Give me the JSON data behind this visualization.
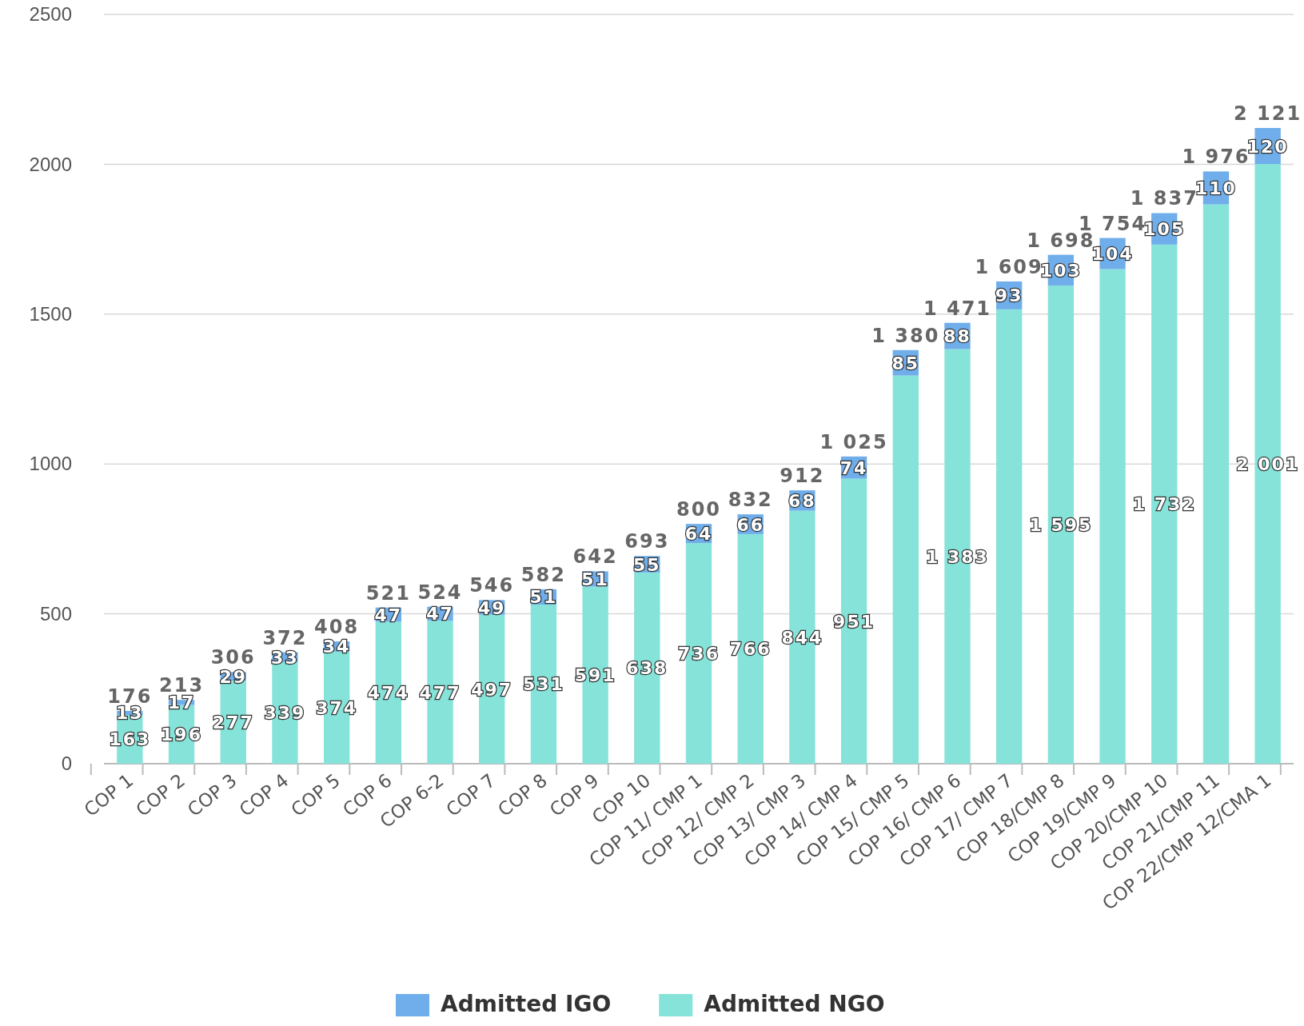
{
  "chart_data": {
    "type": "bar",
    "stacked": true,
    "categories": [
      "COP 1",
      "COP 2",
      "COP 3",
      "COP 4",
      "COP 5",
      "COP 6",
      "COP 6-2",
      "COP 7",
      "COP 8",
      "COP 9",
      "COP 10",
      "COP 11/ CMP 1",
      "COP 12/ CMP 2",
      "COP 13/ CMP 3",
      "COP 14/ CMP 4",
      "COP 15/ CMP 5",
      "COP 16/ CMP 6",
      "COP 17/ CMP 7",
      "COP 18/CMP 8",
      "COP 19/CMP 9",
      "COP 20/CMP 10",
      "COP 21/CMP 11",
      "COP 22/CMP 12/CMA 1"
    ],
    "series": [
      {
        "name": "Admitted NGO",
        "color": "#86e3d9",
        "values": [
          163,
          196,
          277,
          339,
          374,
          474,
          477,
          497,
          531,
          591,
          638,
          736,
          766,
          844,
          951,
          1295,
          1383,
          1516,
          1595,
          1650,
          1732,
          1866,
          2001
        ],
        "value_labels": [
          "163",
          "196",
          "277",
          "339",
          "374",
          "474",
          "477",
          "497",
          "531",
          "591",
          "638",
          "736",
          "766",
          "844",
          "951",
          null,
          "1 383",
          null,
          "1 595",
          null,
          "1 732",
          null,
          "2 001"
        ]
      },
      {
        "name": "Admitted IGO",
        "color": "#6faeea",
        "values": [
          13,
          17,
          29,
          33,
          34,
          47,
          47,
          49,
          51,
          51,
          55,
          64,
          66,
          68,
          74,
          85,
          88,
          93,
          103,
          104,
          105,
          110,
          120
        ],
        "value_labels": [
          "13",
          "17",
          "29",
          "33",
          "34",
          "47",
          "47",
          "49",
          "51",
          "51",
          "55",
          "64",
          "66",
          "68",
          "74",
          "85",
          "88",
          "93",
          "103",
          "104",
          "105",
          "110",
          "120"
        ]
      }
    ],
    "totals": [
      "176",
      "213",
      "306",
      "372",
      "408",
      "521",
      "524",
      "546",
      "582",
      "642",
      "693",
      "800",
      "832",
      "912",
      "1 025",
      "1 380",
      "1 471",
      "1 609",
      "1 698",
      "1 754",
      "1 837",
      "1 976",
      "2 121"
    ],
    "ylim": [
      0,
      2500
    ],
    "yticks": [
      0,
      500,
      1000,
      1500,
      2000,
      2500
    ],
    "grid": "y",
    "legend": "bottom"
  }
}
